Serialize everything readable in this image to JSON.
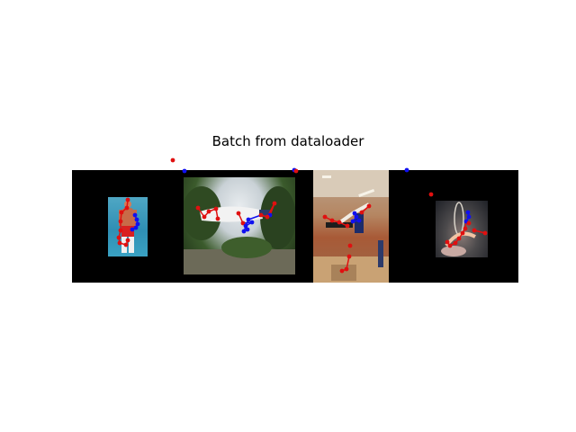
{
  "figure": {
    "title": "Batch from dataloader"
  },
  "legend_colors": {
    "keypoint_left": "#e01010",
    "keypoint_right": "#1010f0",
    "padding": "#000000"
  },
  "images": [
    {
      "subject": "wrestler in red and white, standing, blue background",
      "keypoint_count": 16
    },
    {
      "subject": "person mid-air jump, white shirt, trees, fisheye",
      "keypoint_count": 16
    },
    {
      "subject": "gymnast on balance beam in gym hall",
      "keypoint_count": 16
    },
    {
      "subject": "aerial hoop performer, smoky background",
      "keypoint_count": 16
    }
  ]
}
